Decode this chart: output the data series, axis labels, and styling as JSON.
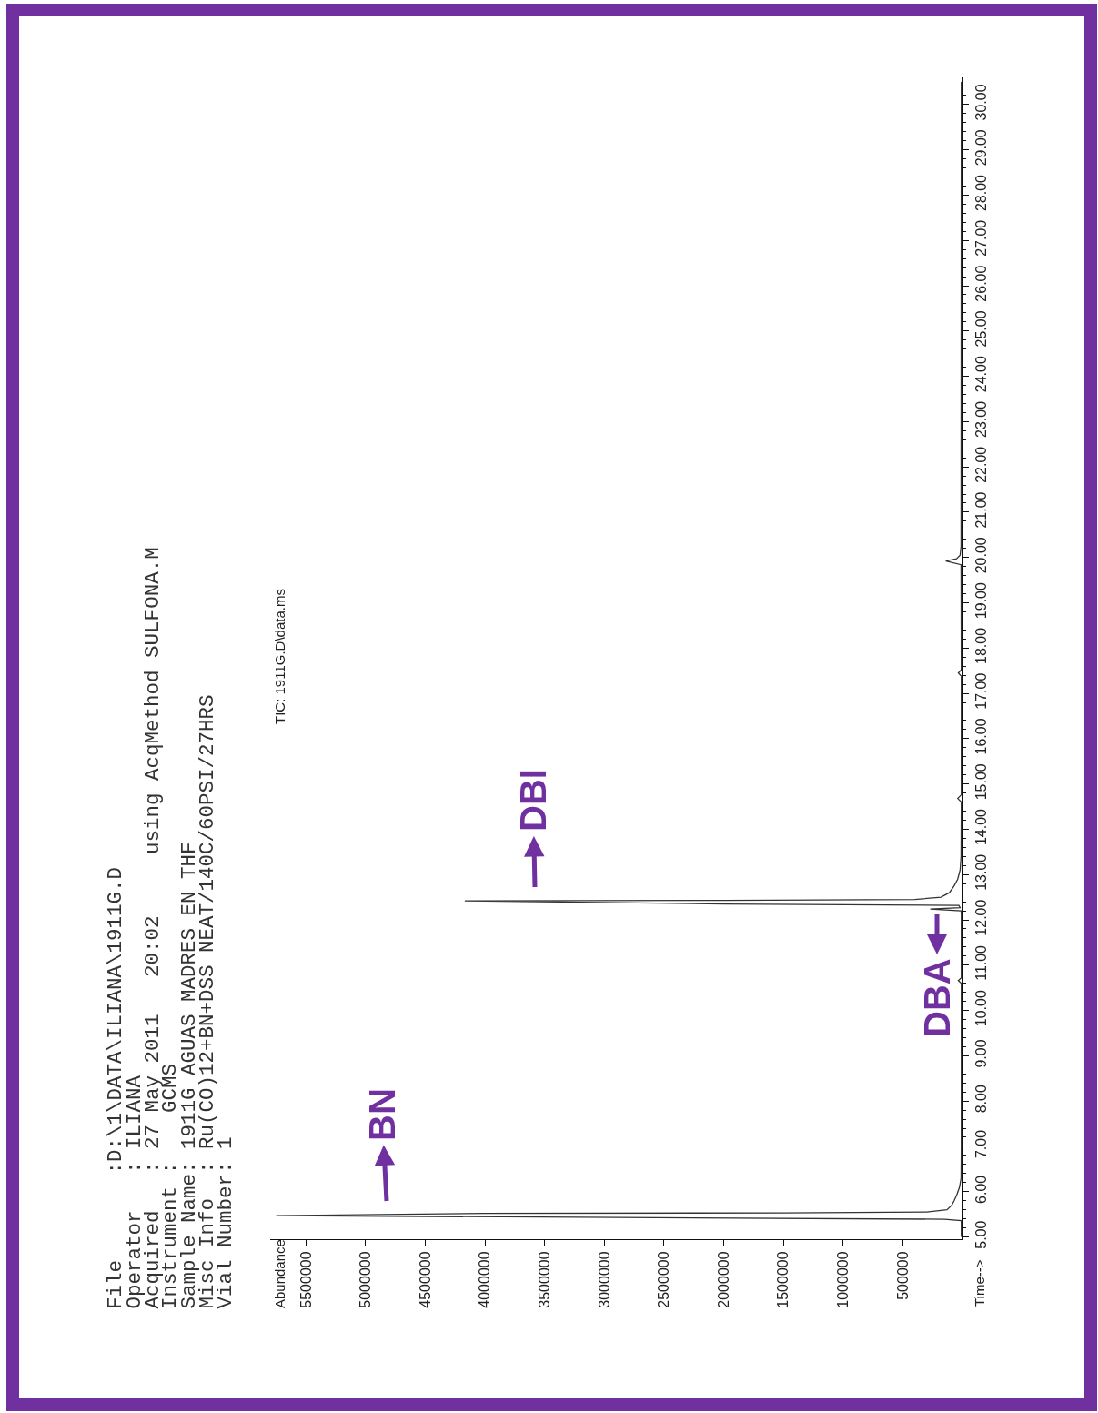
{
  "chart_data": {
    "type": "line",
    "title": "TIC: 1911G.D\\data.ms",
    "ylabel": "Time-->",
    "annotations": [
      "File       :D:\\1\\DATA\\ILIANA\\1911G.D",
      "Operator   : ILIANA",
      "Acquired   : 27 May 2011   20:02     using AcqMethod SULFONA.M",
      "Instrument :    GCMS",
      "Sample Name: 1911G AGUAS MADRES EN THF",
      "Misc Info  : Ru(CO)12+BN+DSS NEAT/140C/60PSI/27HRS",
      "Vial Number: 1",
      "BN",
      "DBI",
      "DBA",
      "Abundance"
    ],
    "x": [
      10000,
      10000,
      150000,
      5750000,
      4000000,
      1500000,
      300000,
      130000,
      90000,
      70000,
      45000,
      25000,
      12000,
      10000,
      10000,
      35000,
      10000,
      10000,
      12000,
      270000,
      20000,
      30000,
      2000000,
      4170000,
      2000000,
      400000,
      180000,
      110000,
      70000,
      40000,
      20000,
      12000,
      10000,
      40000,
      10000,
      10000,
      35000,
      10000,
      12000,
      140000,
      50000,
      20000,
      12000,
      10000
    ],
    "values": [
      5.0,
      5.36,
      5.39,
      5.47,
      5.52,
      5.53,
      5.55,
      5.6,
      5.7,
      5.8,
      5.95,
      6.1,
      6.3,
      7.0,
      10.6,
      10.66,
      10.72,
      12.15,
      12.2,
      12.24,
      12.27,
      12.32,
      12.35,
      12.42,
      12.43,
      12.45,
      12.5,
      12.6,
      12.75,
      12.9,
      13.1,
      13.4,
      14.6,
      14.68,
      14.76,
      17.38,
      17.45,
      17.52,
      19.84,
      19.92,
      19.97,
      20.05,
      20.25,
      30.5
    ],
    "color": "#333333",
    "xlim": [
      5800000,
      0
    ],
    "xticks": [
      500000,
      1000000,
      1500000,
      2000000,
      2500000,
      3000000,
      3500000,
      4000000,
      4500000,
      5000000,
      5500000
    ],
    "ylim": [
      4.95,
      30.6
    ],
    "yticks": [
      {
        "value": 5,
        "label": "5.00"
      },
      {
        "value": 5.2,
        "label": null
      },
      {
        "value": 5.4,
        "label": null
      },
      {
        "value": 5.6,
        "label": null
      },
      {
        "value": 5.8,
        "label": null
      },
      {
        "value": 6,
        "label": "6.00"
      },
      {
        "value": 6.2,
        "label": null
      },
      {
        "value": 6.4,
        "label": null
      },
      {
        "value": 6.6,
        "label": null
      },
      {
        "value": 6.8,
        "label": null
      },
      {
        "value": 7,
        "label": "7.00"
      },
      {
        "value": 7.2,
        "label": null
      },
      {
        "value": 7.4,
        "label": null
      },
      {
        "value": 7.6,
        "label": null
      },
      {
        "value": 7.8,
        "label": null
      },
      {
        "value": 8,
        "label": "8.00"
      },
      {
        "value": 8.2,
        "label": null
      },
      {
        "value": 8.4,
        "label": null
      },
      {
        "value": 8.6,
        "label": null
      },
      {
        "value": 8.8,
        "label": null
      },
      {
        "value": 9,
        "label": "9.00"
      },
      {
        "value": 9.2,
        "label": null
      },
      {
        "value": 9.4,
        "label": null
      },
      {
        "value": 9.6,
        "label": null
      },
      {
        "value": 9.8,
        "label": null
      },
      {
        "value": 10,
        "label": "10.00"
      },
      {
        "value": 10.2,
        "label": null
      },
      {
        "value": 10.4,
        "label": null
      },
      {
        "value": 10.6,
        "label": null
      },
      {
        "value": 10.8,
        "label": null
      },
      {
        "value": 11,
        "label": "11.00"
      },
      {
        "value": 11.2,
        "label": null
      },
      {
        "value": 11.4,
        "label": null
      },
      {
        "value": 11.6,
        "label": null
      },
      {
        "value": 11.8,
        "label": null
      },
      {
        "value": 12,
        "label": "12.00"
      },
      {
        "value": 12.2,
        "label": null
      },
      {
        "value": 12.4,
        "label": null
      },
      {
        "value": 12.6,
        "label": null
      },
      {
        "value": 12.8,
        "label": null
      },
      {
        "value": 13,
        "label": "13.00"
      },
      {
        "value": 13.2,
        "label": null
      },
      {
        "value": 13.4,
        "label": null
      },
      {
        "value": 13.6,
        "label": null
      },
      {
        "value": 13.8,
        "label": null
      },
      {
        "value": 14,
        "label": "14.00"
      },
      {
        "value": 14.2,
        "label": null
      },
      {
        "value": 14.4,
        "label": null
      },
      {
        "value": 14.6,
        "label": null
      },
      {
        "value": 14.8,
        "label": null
      },
      {
        "value": 15,
        "label": "15.00"
      },
      {
        "value": 15.2,
        "label": null
      },
      {
        "value": 15.4,
        "label": null
      },
      {
        "value": 15.6,
        "label": null
      },
      {
        "value": 15.8,
        "label": null
      },
      {
        "value": 16,
        "label": "16.00"
      },
      {
        "value": 16.2,
        "label": null
      },
      {
        "value": 16.4,
        "label": null
      },
      {
        "value": 16.6,
        "label": null
      },
      {
        "value": 16.8,
        "label": null
      },
      {
        "value": 17,
        "label": "17.00"
      },
      {
        "value": 17.2,
        "label": null
      },
      {
        "value": 17.4,
        "label": null
      },
      {
        "value": 17.6,
        "label": null
      },
      {
        "value": 17.8,
        "label": null
      },
      {
        "value": 18,
        "label": "18.00"
      },
      {
        "value": 18.2,
        "label": null
      },
      {
        "value": 18.4,
        "label": null
      },
      {
        "value": 18.6,
        "label": null
      },
      {
        "value": 18.8,
        "label": null
      },
      {
        "value": 19,
        "label": "19.00"
      },
      {
        "value": 19.2,
        "label": null
      },
      {
        "value": 19.4,
        "label": null
      },
      {
        "value": 19.6,
        "label": null
      },
      {
        "value": 19.8,
        "label": null
      },
      {
        "value": 20,
        "label": "20.00"
      },
      {
        "value": 20.2,
        "label": null
      },
      {
        "value": 20.4,
        "label": null
      },
      {
        "value": 20.6,
        "label": null
      },
      {
        "value": 20.8,
        "label": null
      },
      {
        "value": 21,
        "label": "21.00"
      },
      {
        "value": 21.2,
        "label": null
      },
      {
        "value": 21.4,
        "label": null
      },
      {
        "value": 21.6,
        "label": null
      },
      {
        "value": 21.8,
        "label": null
      },
      {
        "value": 22,
        "label": "22.00"
      },
      {
        "value": 22.2,
        "label": null
      },
      {
        "value": 22.4,
        "label": null
      },
      {
        "value": 22.6,
        "label": null
      },
      {
        "value": 22.8,
        "label": null
      },
      {
        "value": 23,
        "label": "23.00"
      },
      {
        "value": 23.2,
        "label": null
      },
      {
        "value": 23.4,
        "label": null
      },
      {
        "value": 23.6,
        "label": null
      },
      {
        "value": 23.8,
        "label": null
      },
      {
        "value": 24,
        "label": "24.00"
      },
      {
        "value": 24.2,
        "label": null
      },
      {
        "value": 24.4,
        "label": null
      },
      {
        "value": 24.6,
        "label": null
      },
      {
        "value": 24.8,
        "label": null
      },
      {
        "value": 25,
        "label": "25.00"
      },
      {
        "value": 25.2,
        "label": null
      },
      {
        "value": 25.4,
        "label": null
      },
      {
        "value": 25.6,
        "label": null
      },
      {
        "value": 25.8,
        "label": null
      },
      {
        "value": 26,
        "label": "26.00"
      },
      {
        "value": 26.2,
        "label": null
      },
      {
        "value": 26.4,
        "label": null
      },
      {
        "value": 26.6,
        "label": null
      },
      {
        "value": 26.8,
        "label": null
      },
      {
        "value": 27,
        "label": "27.00"
      },
      {
        "value": 27.2,
        "label": null
      },
      {
        "value": 27.4,
        "label": null
      },
      {
        "value": 27.6,
        "label": null
      },
      {
        "value": 27.8,
        "label": null
      },
      {
        "value": 28,
        "label": "28.00"
      },
      {
        "value": 28.2,
        "label": null
      },
      {
        "value": 28.4,
        "label": null
      },
      {
        "value": 28.6,
        "label": null
      },
      {
        "value": 28.8,
        "label": null
      },
      {
        "value": 29,
        "label": "29.00"
      },
      {
        "value": 29.2,
        "label": null
      },
      {
        "value": 29.4,
        "label": null
      },
      {
        "value": 29.6,
        "label": null
      },
      {
        "value": 29.8,
        "label": null
      },
      {
        "value": 30,
        "label": "30.00"
      },
      {
        "value": 30.2,
        "label": null
      },
      {
        "value": 30.4,
        "label": null
      }
    ]
  }
}
